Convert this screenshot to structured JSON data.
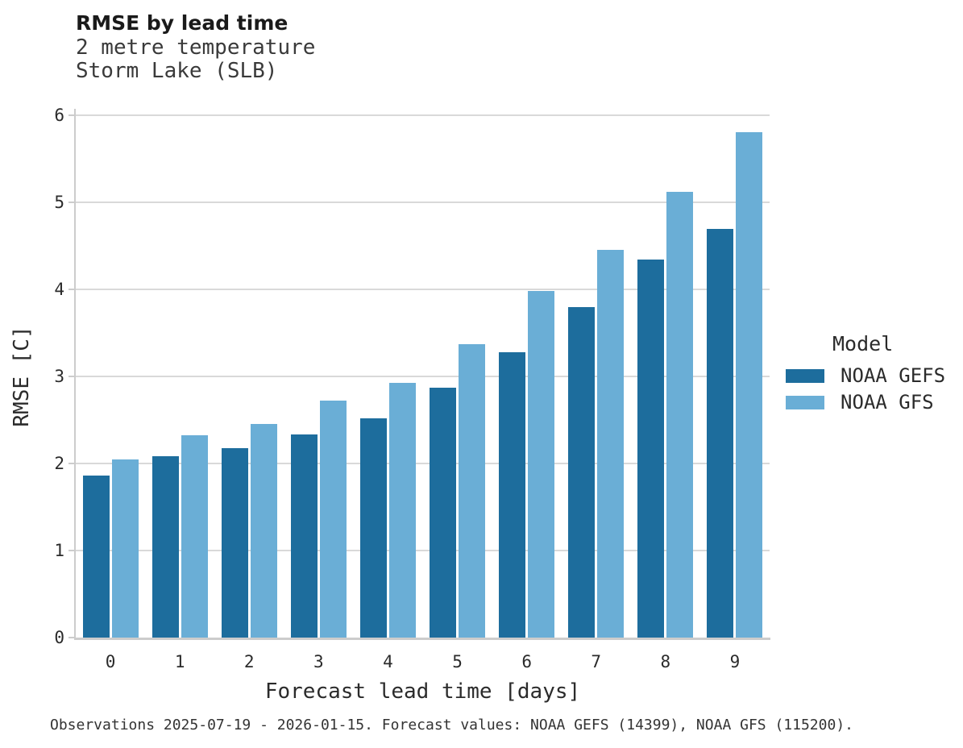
{
  "header": {
    "title": "RMSE by lead time",
    "subtitle_line1": "2 metre temperature",
    "subtitle_line2": "Storm Lake (SLB)"
  },
  "chart_data": {
    "type": "bar",
    "title": "RMSE by lead time",
    "subtitle": [
      "2 metre temperature",
      "Storm Lake (SLB)"
    ],
    "categories": [
      0,
      1,
      2,
      3,
      4,
      5,
      6,
      7,
      8,
      9
    ],
    "series": [
      {
        "name": "NOAA GEFS",
        "color": "#1d6d9d",
        "values": [
          1.86,
          2.08,
          2.18,
          2.33,
          2.52,
          2.87,
          3.28,
          3.8,
          4.34,
          4.69
        ]
      },
      {
        "name": "NOAA GFS",
        "color": "#6aaed6",
        "values": [
          2.05,
          2.32,
          2.45,
          2.72,
          2.93,
          3.37,
          3.98,
          4.45,
          5.12,
          5.81
        ]
      }
    ],
    "xlabel": "Forecast lead time [days]",
    "ylabel": "RMSE [C]",
    "ylim": [
      0,
      6
    ],
    "yticks": [
      0,
      1,
      2,
      3,
      4,
      5,
      6
    ],
    "grid": "horizontal-major",
    "legend_title": "Model",
    "legend_position": "right"
  },
  "legend": {
    "title": "Model",
    "items": [
      {
        "label": "NOAA GEFS",
        "color": "#1d6d9d"
      },
      {
        "label": "NOAA GFS",
        "color": "#6aaed6"
      }
    ]
  },
  "footer": {
    "caption": "Observations 2025-07-19 - 2026-01-15. Forecast values: NOAA GEFS (14399), NOAA GFS (115200)."
  },
  "colors": {
    "gefs_bar": "#1d6d9d",
    "gfs_bar": "#6aaed6",
    "gridline": "#d9d9d9",
    "axis_line": "#cccccc",
    "text": "#2b2b2b",
    "background": "#ffffff"
  }
}
